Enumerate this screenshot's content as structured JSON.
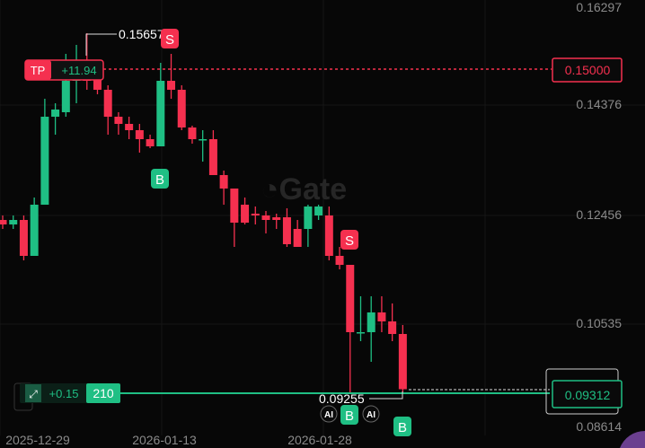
{
  "chart_data": {
    "type": "candlestick",
    "price_axis": {
      "ticks": [
        "0.16297",
        "0.14376",
        "0.12456",
        "0.10535",
        "0.08614"
      ]
    },
    "date_axis": {
      "ticks": [
        "2025-12-29",
        "2026-01-13",
        "2026-01-28"
      ]
    },
    "candles": [
      [
        0.12328,
        0.12408,
        0.12168,
        0.12248
      ],
      [
        0.12248,
        0.12408,
        0.12168,
        0.12328
      ],
      [
        0.12328,
        0.12408,
        0.11608,
        0.11688
      ],
      [
        0.11688,
        0.12728,
        0.11688,
        0.126
      ],
      [
        0.126,
        0.14488,
        0.126,
        0.14168
      ],
      [
        0.14168,
        0.14408,
        0.13848,
        0.14296
      ],
      [
        0.14248,
        0.15288,
        0.14168,
        0.14808
      ],
      [
        0.14808,
        0.15448,
        0.14408,
        0.14888
      ],
      [
        0.14888,
        0.15657,
        0.14648,
        0.14808
      ],
      [
        0.14968,
        0.15128,
        0.14568,
        0.14648
      ],
      [
        0.14648,
        0.14728,
        0.13848,
        0.14168
      ],
      [
        0.14168,
        0.14248,
        0.13848,
        0.1404
      ],
      [
        0.1404,
        0.14168,
        0.13768,
        0.13928
      ],
      [
        0.13928,
        0.1404,
        0.13528,
        0.13768
      ],
      [
        0.13768,
        0.13848,
        0.13608,
        0.1364
      ],
      [
        0.1364,
        0.15128,
        0.1364,
        0.14808
      ],
      [
        0.14808,
        0.15288,
        0.14488,
        0.14648
      ],
      [
        0.14648,
        0.14728,
        0.13928,
        0.13976
      ],
      [
        0.13976,
        0.14008,
        0.13688,
        0.13768
      ],
      [
        0.13768,
        0.13928,
        0.13368,
        0.13768
      ],
      [
        0.13768,
        0.13928,
        0.13128,
        0.13128
      ],
      [
        0.13128,
        0.13208,
        0.126,
        0.12888
      ],
      [
        0.12888,
        0.12888,
        0.11848,
        0.1228
      ],
      [
        0.126,
        0.12728,
        0.12248,
        0.1228
      ],
      [
        0.1244,
        0.12568,
        0.12248,
        0.12408
      ],
      [
        0.12408,
        0.12488,
        0.12088,
        0.12328
      ],
      [
        0.12376,
        0.1244,
        0.12168,
        0.12328
      ],
      [
        0.12376,
        0.12536,
        0.11848,
        0.11896
      ],
      [
        0.12168,
        0.12328,
        0.11848,
        0.11848
      ],
      [
        0.12168,
        0.126,
        0.11848,
        0.12568
      ],
      [
        0.12408,
        0.126,
        0.12328,
        0.12568
      ],
      [
        0.12408,
        0.12568,
        0.11608,
        0.11688
      ],
      [
        0.11688,
        0.11848,
        0.11448,
        0.11528
      ],
      [
        0.11528,
        0.11528,
        0.09255,
        0.10328
      ],
      [
        0.10328,
        0.10968,
        0.10168,
        0.10328
      ],
      [
        0.10328,
        0.10968,
        0.098,
        0.1068
      ],
      [
        0.1068,
        0.10968,
        0.10328,
        0.1052
      ],
      [
        0.1052,
        0.1084,
        0.10168,
        0.10296
      ],
      [
        0.10296,
        0.10456,
        0.09256,
        0.09312
      ]
    ],
    "high_label": "0.15657",
    "low_label": "0.09255",
    "take_profit": {
      "label": "TP",
      "pnl": "+11.94",
      "price": "0.15000"
    },
    "position": {
      "pnl": "+0.15",
      "size": "210",
      "price": "0.09312"
    },
    "markers": [
      {
        "candle": 16,
        "label": "S",
        "side": "sell"
      },
      {
        "candle": 15,
        "label": "B",
        "side": "buy"
      },
      {
        "candle": 33,
        "label": "S",
        "side": "sell"
      },
      {
        "candle": 33,
        "label": "B",
        "side": "buy",
        "ai": "AI"
      },
      {
        "candle": 38,
        "label": "B",
        "side": "buy"
      }
    ],
    "watermark": "Gate"
  },
  "colors": {
    "up": "#1fbf84",
    "down": "#f5304f",
    "bg": "#070707"
  }
}
